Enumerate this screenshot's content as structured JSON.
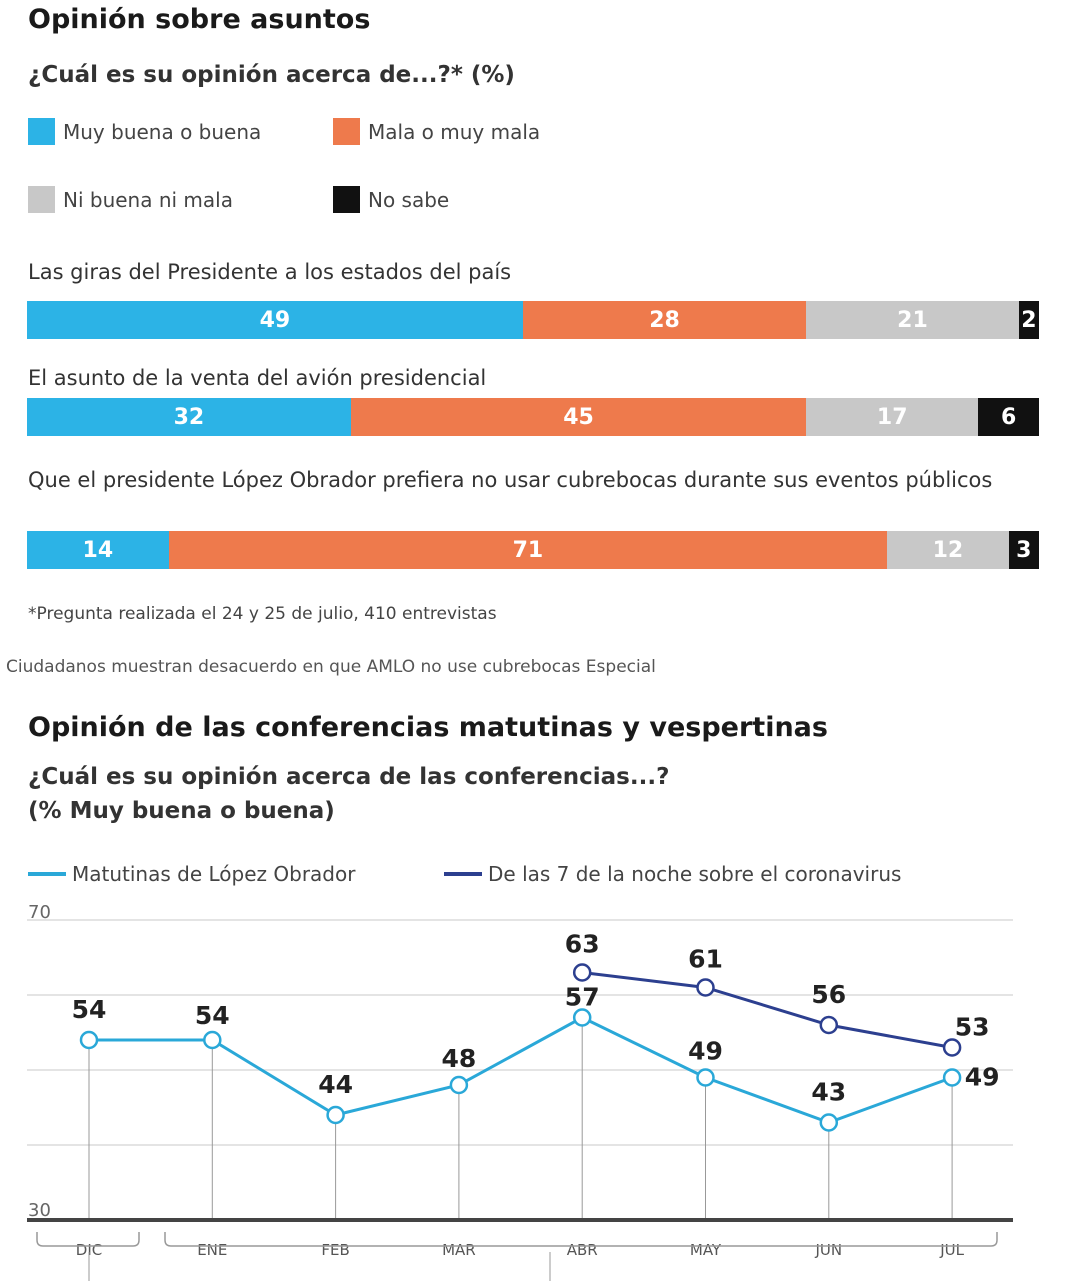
{
  "section1": {
    "title": "Opinión sobre asuntos",
    "subtitle": "¿Cuál es su opinión acerca de...?*  (%)",
    "legend": [
      {
        "label": "Muy buena o buena",
        "color": "#2cb3e6"
      },
      {
        "label": "Mala o muy mala",
        "color": "#ee7a4c"
      },
      {
        "label": "Ni buena ni mala",
        "color": "#c8c8c8"
      },
      {
        "label": "No sabe",
        "color": "#111111"
      }
    ],
    "footnote": "*Pregunta realizada el 24 y 25 de julio, 410 entrevistas"
  },
  "caption": "Ciudadanos muestran desacuerdo en que AMLO no use cubrebocas Especial",
  "section2": {
    "title": "Opinión de las conferencias matutinas y vespertinas",
    "subtitle1": "¿Cuál es su opinión acerca de las conferencias...?",
    "subtitle2": "(% Muy buena o buena)"
  },
  "chart_data": [
    {
      "type": "bar",
      "stacked": true,
      "unit": "%",
      "categories": [
        "Las giras del Presidente a los estados del país",
        "El asunto de la venta del avión presidencial",
        "Que el presidente López Obrador prefiera no usar cubrebocas durante sus eventos públicos"
      ],
      "series": [
        {
          "name": "Muy buena o buena",
          "values": [
            49,
            32,
            14
          ]
        },
        {
          "name": "Mala o muy mala",
          "values": [
            28,
            45,
            71
          ]
        },
        {
          "name": "Ni buena ni mala",
          "values": [
            21,
            17,
            12
          ]
        },
        {
          "name": "No sabe",
          "values": [
            2,
            6,
            3
          ]
        }
      ]
    },
    {
      "type": "line",
      "categories": [
        "DIC",
        "ENE",
        "FEB",
        "MAR",
        "ABR",
        "MAY",
        "JUN",
        "JUL"
      ],
      "ylim": [
        30,
        70
      ],
      "yticks": [
        "70",
        "30"
      ],
      "grid": true,
      "legend": "top",
      "series": [
        {
          "name": "Matutinas de López Obrador",
          "color": "#2aa8d8",
          "values": [
            54,
            54,
            44,
            48,
            57,
            49,
            43,
            49
          ]
        },
        {
          "name": "De las 7 de la noche sobre el coronavirus",
          "color": "#2c3f8f",
          "values": [
            null,
            null,
            null,
            null,
            63,
            61,
            56,
            53
          ]
        }
      ]
    }
  ]
}
